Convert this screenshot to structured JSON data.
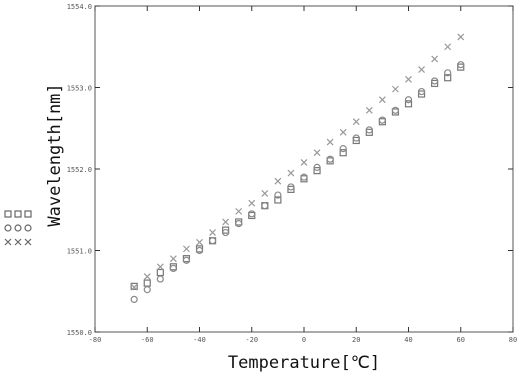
{
  "chart_data": {
    "type": "scatter",
    "xlabel": "Temperature[℃]",
    "ylabel": "Wavelength[nm]",
    "xlim": [
      -80,
      80
    ],
    "ylim": [
      1550,
      1554
    ],
    "x_ticks": [
      "-80",
      "-60",
      "-40",
      "-20",
      "0",
      "20",
      "40",
      "60",
      "80"
    ],
    "y_ticks": [
      "1550.0",
      "1551.0",
      "1552.0",
      "1553.0",
      "1554.0"
    ],
    "grid": false,
    "legend_position": "left, outside plot",
    "series": [
      {
        "marker": "square",
        "color": "#777777",
        "points": [
          [
            -65,
            1550.56
          ],
          [
            -60,
            1550.6
          ],
          [
            -55,
            1550.73
          ],
          [
            -50,
            1550.8
          ],
          [
            -45,
            1550.9
          ],
          [
            -40,
            1551.02
          ],
          [
            -35,
            1551.12
          ],
          [
            -30,
            1551.25
          ],
          [
            -25,
            1551.35
          ],
          [
            -20,
            1551.43
          ],
          [
            -15,
            1551.55
          ],
          [
            -10,
            1551.62
          ],
          [
            -5,
            1551.75
          ],
          [
            0,
            1551.88
          ],
          [
            5,
            1551.98
          ],
          [
            10,
            1552.1
          ],
          [
            15,
            1552.2
          ],
          [
            20,
            1552.35
          ],
          [
            25,
            1552.45
          ],
          [
            30,
            1552.58
          ],
          [
            35,
            1552.7
          ],
          [
            40,
            1552.8
          ],
          [
            45,
            1552.92
          ],
          [
            50,
            1553.05
          ],
          [
            55,
            1553.12
          ],
          [
            60,
            1553.25
          ]
        ]
      },
      {
        "marker": "circle",
        "color": "#888888",
        "points": [
          [
            -65,
            1550.4
          ],
          [
            -60,
            1550.52
          ],
          [
            -55,
            1550.65
          ],
          [
            -50,
            1550.78
          ],
          [
            -45,
            1550.88
          ],
          [
            -40,
            1551.0
          ],
          [
            -35,
            1551.12
          ],
          [
            -30,
            1551.22
          ],
          [
            -25,
            1551.33
          ],
          [
            -20,
            1551.45
          ],
          [
            -15,
            1551.55
          ],
          [
            -10,
            1551.68
          ],
          [
            -5,
            1551.78
          ],
          [
            0,
            1551.9
          ],
          [
            5,
            1552.02
          ],
          [
            10,
            1552.12
          ],
          [
            15,
            1552.25
          ],
          [
            20,
            1552.38
          ],
          [
            25,
            1552.48
          ],
          [
            30,
            1552.6
          ],
          [
            35,
            1552.72
          ],
          [
            40,
            1552.85
          ],
          [
            45,
            1552.95
          ],
          [
            50,
            1553.08
          ],
          [
            55,
            1553.18
          ],
          [
            60,
            1553.28
          ]
        ]
      },
      {
        "marker": "cross",
        "color": "#999999",
        "points": [
          [
            -65,
            1550.55
          ],
          [
            -60,
            1550.68
          ],
          [
            -55,
            1550.8
          ],
          [
            -50,
            1550.9
          ],
          [
            -45,
            1551.02
          ],
          [
            -40,
            1551.1
          ],
          [
            -35,
            1551.22
          ],
          [
            -30,
            1551.35
          ],
          [
            -25,
            1551.48
          ],
          [
            -20,
            1551.58
          ],
          [
            -15,
            1551.7
          ],
          [
            -10,
            1551.85
          ],
          [
            -5,
            1551.95
          ],
          [
            0,
            1552.08
          ],
          [
            5,
            1552.2
          ],
          [
            10,
            1552.33
          ],
          [
            15,
            1552.45
          ],
          [
            20,
            1552.58
          ],
          [
            25,
            1552.72
          ],
          [
            30,
            1552.85
          ],
          [
            35,
            1552.98
          ],
          [
            40,
            1553.1
          ],
          [
            45,
            1553.22
          ],
          [
            50,
            1553.35
          ],
          [
            55,
            1553.5
          ],
          [
            60,
            1553.62
          ]
        ]
      }
    ],
    "legend": [
      {
        "marker": "square"
      },
      {
        "marker": "circle"
      },
      {
        "marker": "cross"
      }
    ]
  }
}
